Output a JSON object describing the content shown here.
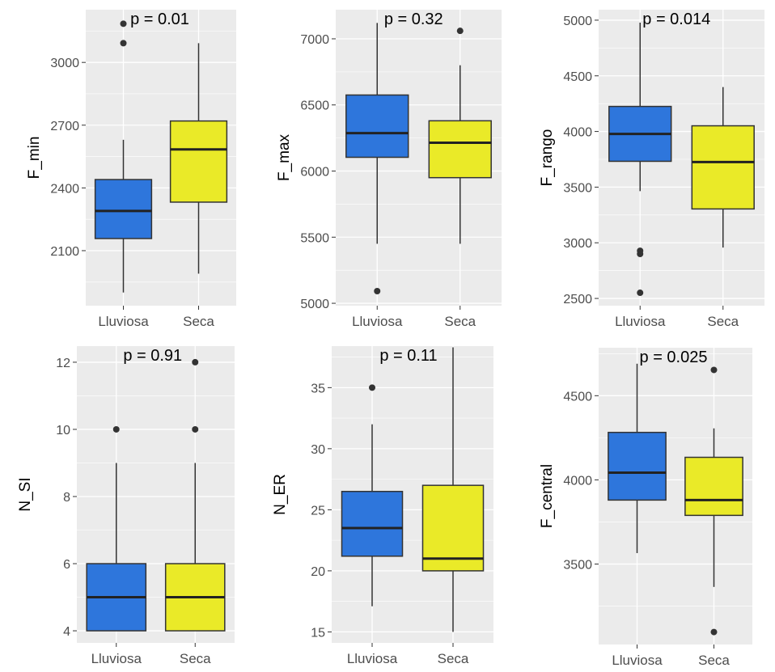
{
  "chart_data": [
    {
      "type": "boxplot",
      "ylabel": "F_min",
      "annotation": "p = 0.01",
      "categories": [
        "Lluviosa",
        "Seca"
      ],
      "ylim": [
        1837,
        3252
      ],
      "yticks": [
        2100,
        2400,
        2700,
        3000
      ],
      "boxes": [
        {
          "min": 1900,
          "q1": 2158,
          "median": 2290,
          "q3": 2440,
          "max": 2630,
          "outliers": [
            3092,
            3185
          ]
        },
        {
          "min": 1990,
          "q1": 2332,
          "median": 2584,
          "q3": 2720,
          "max": 3092,
          "outliers": []
        }
      ]
    },
    {
      "type": "boxplot",
      "ylabel": "F_max",
      "annotation": "p = 0.32",
      "categories": [
        "Lluviosa",
        "Seca"
      ],
      "ylim": [
        4982,
        7220
      ],
      "yticks": [
        5000,
        5500,
        6000,
        6500,
        7000
      ],
      "boxes": [
        {
          "min": 5450,
          "q1": 6104,
          "median": 6287,
          "q3": 6575,
          "max": 7120,
          "outliers": [
            5092
          ]
        },
        {
          "min": 5450,
          "q1": 5950,
          "median": 6214,
          "q3": 6380,
          "max": 6800,
          "outliers": [
            7060
          ]
        }
      ]
    },
    {
      "type": "boxplot",
      "ylabel": "F_rango",
      "annotation": "p = 0.014",
      "categories": [
        "Lluviosa",
        "Seca"
      ],
      "ylim": [
        2435,
        5094
      ],
      "yticks": [
        2500,
        3000,
        3500,
        4000,
        4500,
        5000
      ],
      "boxes": [
        {
          "min": 3464,
          "q1": 3732,
          "median": 3978,
          "q3": 4225,
          "max": 4978,
          "outliers": [
            2928,
            2900,
            2551
          ]
        },
        {
          "min": 2957,
          "q1": 3304,
          "median": 3725,
          "q3": 4051,
          "max": 4399,
          "outliers": []
        }
      ]
    },
    {
      "type": "boxplot",
      "ylabel": "N_SI",
      "annotation": "p = 0.91",
      "categories": [
        "Lluviosa",
        "Seca"
      ],
      "ylim": [
        3.64,
        12.48
      ],
      "yticks": [
        4,
        6,
        8,
        10,
        12
      ],
      "boxes": [
        {
          "min": 4,
          "q1": 4,
          "median": 5,
          "q3": 6,
          "max": 9,
          "outliers": [
            10
          ]
        },
        {
          "min": 4,
          "q1": 4,
          "median": 5,
          "q3": 6,
          "max": 9,
          "outliers": [
            10,
            12
          ]
        }
      ]
    },
    {
      "type": "boxplot",
      "ylabel": "N_ER",
      "annotation": "p = 0.11",
      "categories": [
        "Lluviosa",
        "Seca"
      ],
      "ylim": [
        14.1,
        38.4
      ],
      "yticks": [
        15,
        20,
        25,
        30,
        35
      ],
      "boxes": [
        {
          "min": 17.1,
          "q1": 21.2,
          "median": 23.5,
          "q3": 26.5,
          "max": 32,
          "outliers": [
            35
          ]
        },
        {
          "min": 15,
          "q1": 20,
          "median": 21,
          "q3": 27,
          "max": 38.3,
          "outliers": []
        }
      ]
    },
    {
      "type": "boxplot",
      "ylabel": "F_central",
      "annotation": "p = 0.025",
      "categories": [
        "Lluviosa",
        "Seca"
      ],
      "ylim": [
        3022,
        4785
      ],
      "yticks": [
        3500,
        4000,
        4500
      ],
      "boxes": [
        {
          "min": 3565,
          "q1": 3880,
          "median": 4043,
          "q3": 4282,
          "max": 4690,
          "outliers": []
        },
        {
          "min": 3364,
          "q1": 3789,
          "median": 3880,
          "q3": 4134,
          "max": 4306,
          "outliers": [
            4653,
            3096
          ]
        }
      ]
    }
  ],
  "colors": {
    "Lluviosa": "#2E76DC",
    "Seca": "#EAEA28",
    "panel": "#EBEBEB",
    "grid": "#FFFFFF"
  }
}
